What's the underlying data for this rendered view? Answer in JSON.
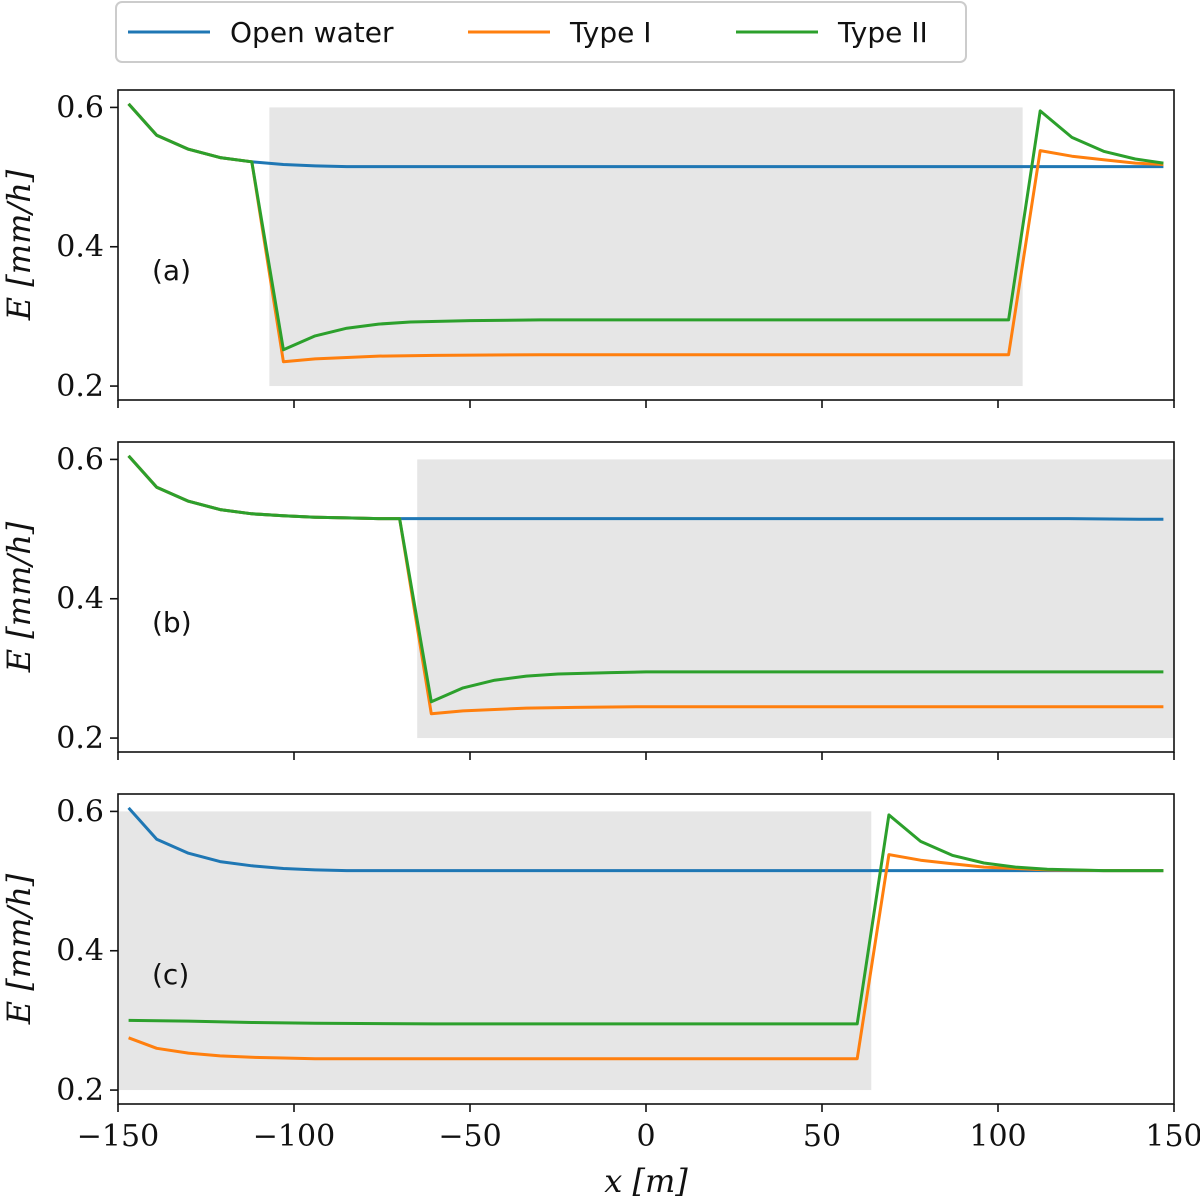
{
  "chart_data": {
    "type": "line",
    "xlabel": "x [m]",
    "ylabel": "E [mm/h]",
    "xlim": [
      -150,
      150
    ],
    "ylim": [
      0.18,
      0.625
    ],
    "xticks": [
      -150,
      -100,
      -50,
      0,
      50,
      100,
      150
    ],
    "xtick_labels": [
      "−150",
      "−100",
      "−50",
      "0",
      "50",
      "100",
      "150"
    ],
    "yticks": [
      0.2,
      0.4,
      0.6
    ],
    "ytick_labels": [
      "0.2",
      "0.4",
      "0.6"
    ],
    "legend": {
      "placement": "top-center",
      "entries": [
        {
          "label": "Open water",
          "color": "#1f77b4"
        },
        {
          "label": "Type I",
          "color": "#ff7f0e"
        },
        {
          "label": "Type II",
          "color": "#2ca02c"
        }
      ]
    },
    "shade_color": "#e6e6e6",
    "panels": [
      {
        "label": "(a)",
        "shaded": {
          "x": [
            -107,
            107
          ],
          "y": [
            0.2,
            0.6
          ]
        },
        "series": [
          {
            "name": "Open water",
            "color": "#1f77b4",
            "x": [
              -147,
              -139,
              -130,
              -121,
              -112,
              -103,
              -94,
              -85,
              -60,
              -30,
              0,
              30,
              60,
              90,
              112,
              121,
              130,
              139,
              147
            ],
            "y": [
              0.605,
              0.56,
              0.54,
              0.528,
              0.522,
              0.518,
              0.516,
              0.515,
              0.515,
              0.515,
              0.515,
              0.515,
              0.515,
              0.515,
              0.515,
              0.515,
              0.515,
              0.515,
              0.515
            ]
          },
          {
            "name": "Type I",
            "color": "#ff7f0e",
            "x": [
              -147,
              -139,
              -130,
              -121,
              -112,
              -103,
              -94,
              -85,
              -76,
              -60,
              -30,
              0,
              30,
              60,
              90,
              103,
              112,
              121,
              130,
              139,
              147
            ],
            "y": [
              0.605,
              0.56,
              0.54,
              0.528,
              0.522,
              0.235,
              0.239,
              0.241,
              0.243,
              0.244,
              0.245,
              0.245,
              0.245,
              0.245,
              0.245,
              0.245,
              0.538,
              0.53,
              0.525,
              0.52,
              0.518
            ]
          },
          {
            "name": "Type II",
            "color": "#2ca02c",
            "x": [
              -147,
              -139,
              -130,
              -121,
              -112,
              -103,
              -94,
              -85,
              -76,
              -67,
              -50,
              -30,
              0,
              30,
              60,
              90,
              103,
              112,
              121,
              130,
              139,
              147
            ],
            "y": [
              0.605,
              0.56,
              0.54,
              0.528,
              0.522,
              0.252,
              0.272,
              0.283,
              0.289,
              0.292,
              0.294,
              0.295,
              0.295,
              0.295,
              0.295,
              0.295,
              0.295,
              0.595,
              0.557,
              0.537,
              0.526,
              0.52
            ]
          }
        ]
      },
      {
        "label": "(b)",
        "shaded": {
          "x": [
            -65,
            150
          ],
          "y": [
            0.2,
            0.6
          ]
        },
        "series": [
          {
            "name": "Open water",
            "color": "#1f77b4",
            "x": [
              -147,
              -139,
              -130,
              -121,
              -112,
              -103,
              -94,
              -85,
              -76,
              -70,
              -40,
              0,
              40,
              80,
              120,
              140,
              147
            ],
            "y": [
              0.605,
              0.56,
              0.54,
              0.528,
              0.522,
              0.519,
              0.517,
              0.516,
              0.515,
              0.515,
              0.515,
              0.515,
              0.515,
              0.515,
              0.515,
              0.514,
              0.514
            ]
          },
          {
            "name": "Type I",
            "color": "#ff7f0e",
            "x": [
              -147,
              -139,
              -130,
              -121,
              -112,
              -103,
              -94,
              -85,
              -76,
              -70,
              -61,
              -52,
              -43,
              -34,
              -20,
              0,
              40,
              80,
              120,
              147
            ],
            "y": [
              0.605,
              0.56,
              0.54,
              0.528,
              0.522,
              0.519,
              0.517,
              0.516,
              0.515,
              0.515,
              0.235,
              0.239,
              0.241,
              0.243,
              0.244,
              0.245,
              0.245,
              0.245,
              0.245,
              0.245
            ]
          },
          {
            "name": "Type II",
            "color": "#2ca02c",
            "x": [
              -147,
              -139,
              -130,
              -121,
              -112,
              -103,
              -94,
              -85,
              -76,
              -70,
              -61,
              -52,
              -43,
              -34,
              -25,
              -10,
              0,
              40,
              80,
              120,
              147
            ],
            "y": [
              0.605,
              0.56,
              0.54,
              0.528,
              0.522,
              0.519,
              0.517,
              0.516,
              0.515,
              0.515,
              0.252,
              0.272,
              0.283,
              0.289,
              0.292,
              0.294,
              0.295,
              0.295,
              0.295,
              0.295,
              0.295
            ]
          }
        ]
      },
      {
        "label": "(c)",
        "shaded": {
          "x": [
            -150,
            64
          ],
          "y": [
            0.2,
            0.6
          ]
        },
        "series": [
          {
            "name": "Open water",
            "color": "#1f77b4",
            "x": [
              -147,
              -139,
              -130,
              -121,
              -112,
              -103,
              -94,
              -85,
              -60,
              -30,
              0,
              30,
              60,
              69,
              90,
              120,
              147
            ],
            "y": [
              0.605,
              0.56,
              0.54,
              0.528,
              0.522,
              0.518,
              0.516,
              0.515,
              0.515,
              0.515,
              0.515,
              0.515,
              0.515,
              0.515,
              0.515,
              0.515,
              0.515
            ]
          },
          {
            "name": "Type I",
            "color": "#ff7f0e",
            "x": [
              -147,
              -139,
              -130,
              -121,
              -112,
              -103,
              -94,
              -85,
              -60,
              -30,
              0,
              30,
              60,
              69,
              78,
              87,
              96,
              105,
              114,
              130,
              147
            ],
            "y": [
              0.275,
              0.26,
              0.253,
              0.249,
              0.247,
              0.246,
              0.245,
              0.245,
              0.245,
              0.245,
              0.245,
              0.245,
              0.245,
              0.538,
              0.53,
              0.525,
              0.52,
              0.518,
              0.516,
              0.515,
              0.515
            ]
          },
          {
            "name": "Type II",
            "color": "#2ca02c",
            "x": [
              -147,
              -130,
              -112,
              -94,
              -60,
              -30,
              0,
              30,
              60,
              69,
              78,
              87,
              96,
              105,
              114,
              130,
              147
            ],
            "y": [
              0.3,
              0.299,
              0.297,
              0.296,
              0.295,
              0.295,
              0.295,
              0.295,
              0.295,
              0.595,
              0.557,
              0.537,
              0.526,
              0.52,
              0.517,
              0.515,
              0.515
            ]
          }
        ]
      }
    ]
  }
}
